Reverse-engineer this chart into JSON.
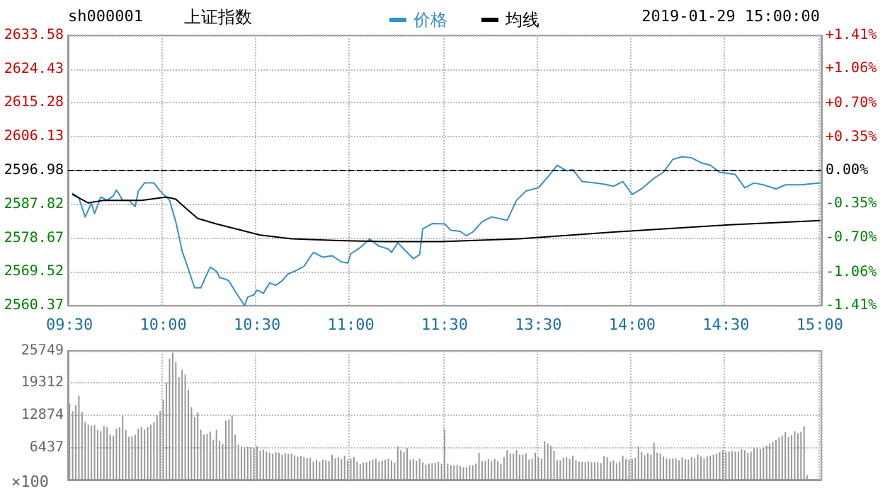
{
  "chart_data": [
    {
      "type": "line",
      "title": "sh000001",
      "subtitle": "上证指数",
      "annotations": [
        "2019-01-29 15:00:00"
      ],
      "categories": [
        "09:30",
        null,
        null,
        null,
        null,
        null,
        null,
        null,
        null,
        null,
        null,
        null,
        null,
        null,
        null,
        null,
        null,
        null,
        null,
        null,
        null,
        null,
        null,
        null,
        null,
        null,
        null,
        null,
        null,
        null,
        "10:00",
        null,
        null,
        null,
        null,
        null,
        null,
        null,
        null,
        null,
        null,
        null,
        null,
        null,
        null,
        null,
        null,
        null,
        null,
        null,
        null,
        null,
        null,
        null,
        null,
        null,
        null,
        null,
        null,
        null,
        "10:30",
        null,
        null,
        null,
        null,
        null,
        null,
        null,
        null,
        null,
        null,
        null,
        null,
        null,
        null,
        null,
        null,
        null,
        null,
        null,
        null,
        null,
        null,
        null,
        null,
        null,
        null,
        null,
        null,
        null,
        "11:00",
        null,
        null,
        null,
        null,
        null,
        null,
        null,
        null,
        null,
        null,
        null,
        null,
        null,
        null,
        null,
        null,
        null,
        null,
        null,
        null,
        null,
        null,
        null,
        null,
        null,
        null,
        null,
        null,
        null,
        "11:30",
        null,
        null,
        null,
        null,
        null,
        null,
        null,
        null,
        null,
        null,
        null,
        null,
        null,
        null,
        null,
        null,
        null,
        null,
        null,
        null,
        null,
        null,
        null,
        null,
        null,
        null,
        null,
        null,
        null,
        "13:30",
        null,
        null,
        null,
        null,
        null,
        null,
        null,
        null,
        null,
        null,
        null,
        null,
        null,
        null,
        null,
        null,
        null,
        null,
        null,
        null,
        null,
        null,
        null,
        null,
        null,
        null,
        null,
        null,
        null,
        "14:00",
        null,
        null,
        null,
        null,
        null,
        null,
        null,
        null,
        null,
        null,
        null,
        null,
        null,
        null,
        null,
        null,
        null,
        null,
        null,
        null,
        null,
        null,
        null,
        null,
        null,
        null,
        null,
        null,
        null,
        "14:30",
        null,
        null,
        null,
        null,
        null,
        null,
        null,
        null,
        null,
        null,
        null,
        null,
        null,
        null,
        null,
        null,
        null,
        null,
        null,
        null,
        null,
        null,
        null,
        null,
        null,
        null,
        null,
        null,
        null,
        "15:00"
      ],
      "ylim": [
        2560.37,
        2633.58
      ],
      "yticks": [
        2560.37,
        2569.52,
        2578.67,
        2587.82,
        2596.98,
        2606.13,
        2615.28,
        2624.43,
        2633.58
      ],
      "y2lim": [
        -1.41,
        1.41
      ],
      "y2ticks": [
        {
          "value": -1.41,
          "label": "-1.41%"
        },
        {
          "value": -1.06,
          "label": "-1.06%"
        },
        {
          "value": -0.7,
          "label": "-0.70%"
        },
        {
          "value": -0.35,
          "label": "-0.35%"
        },
        {
          "value": 0,
          "label": "0.00%"
        },
        {
          "value": 0.35,
          "label": "+0.35%"
        },
        {
          "value": 0.7,
          "label": "+0.70%"
        },
        {
          "value": 1.06,
          "label": "+1.06%"
        },
        {
          "value": 1.41,
          "label": "+1.41%"
        }
      ],
      "ref_lines": [
        {
          "axis": "y",
          "value": 2596.98,
          "color": "#000000",
          "line_style": "dashed"
        }
      ],
      "grid": true,
      "legend": "top",
      "marker": "none",
      "line_style": "solid",
      "series": [
        {
          "name": "价格",
          "color": "#3a8fc7",
          "values": [
            null,
            2590.8,
            null,
            2589.5,
            null,
            2584.4,
            null,
            2588.2,
            2585.3,
            null,
            2589.8,
            null,
            2588.9,
            null,
            2590.1,
            2591.7,
            null,
            2588.9,
            null,
            2588.9,
            null,
            2587.2,
            2591.4,
            null,
            2593.6,
            null,
            null,
            2593.6,
            null,
            2591.4,
            null,
            null,
            2588.9,
            null,
            2583.1,
            null,
            2575.2,
            null,
            2570.3,
            null,
            2565.2,
            null,
            2565.2,
            null,
            2569.0,
            2570.8,
            null,
            2569.7,
            2568.0,
            null,
            2567.5,
            2567.1,
            null,
            2564.2,
            null,
            null,
            2560.4,
            2562.7,
            null,
            2563.3,
            2564.6,
            null,
            2563.7,
            null,
            2566.5,
            null,
            2565.9,
            null,
            2567.1,
            null,
            2569.0,
            null,
            2569.7,
            null,
            null,
            2571.0,
            null,
            null,
            2574.8,
            null,
            null,
            2573.5,
            null,
            null,
            2573.9,
            null,
            null,
            2572.2,
            null,
            2571.9,
            2574.4,
            null,
            null,
            2576.1,
            null,
            null,
            2578.4,
            null,
            null,
            2576.5,
            null,
            null,
            2575.7,
            2574.8,
            null,
            2577.4,
            null,
            null,
            2574.8,
            null,
            2573.1,
            null,
            2574.2,
            2581.2,
            null,
            null,
            2582.6,
            null,
            null,
            null,
            2582.5,
            null,
            2580.8,
            null,
            null,
            2580.5,
            null,
            2579.3,
            null,
            2580.3,
            null,
            null,
            2583.1,
            null,
            null,
            2584.4,
            null,
            null,
            null,
            null,
            2583.5,
            null,
            null,
            2588.9,
            null,
            null,
            2591.4,
            null,
            null,
            null,
            2592.3,
            null,
            null,
            2595.2,
            null,
            null,
            2598.4,
            null,
            null,
            2596.9,
            null,
            2597.2,
            null,
            null,
            2594.0,
            null,
            null,
            null,
            2593.6,
            null,
            null,
            2593.3,
            null,
            null,
            2592.7,
            null,
            null,
            2594.0,
            null,
            null,
            2590.5,
            null,
            null,
            2592.0,
            null,
            null,
            null,
            2594.9,
            null,
            null,
            2596.5,
            null,
            null,
            2600.0,
            null,
            null,
            2600.7,
            null,
            null,
            2600.4,
            null,
            null,
            2599.1,
            null,
            null,
            2598.4,
            null,
            null,
            2596.5,
            null,
            null,
            null,
            null,
            2595.9,
            null,
            null,
            2592.3,
            null,
            null,
            2593.6,
            null,
            null,
            2593.1,
            null,
            null,
            null,
            2592.0,
            null,
            null,
            2593.1,
            null,
            null,
            null,
            null,
            2593.1,
            null,
            null,
            null,
            null,
            null,
            2593.6
          ]
        },
        {
          "name": "均线",
          "color": "#000000",
          "values": [
            null,
            2590.5,
            null,
            null,
            null,
            null,
            2588.2,
            null,
            null,
            null,
            null,
            2588.9,
            null,
            null,
            null,
            null,
            null,
            null,
            null,
            null,
            null,
            null,
            null,
            2588.9,
            null,
            null,
            null,
            null,
            null,
            null,
            null,
            2589.8,
            null,
            null,
            2589.2,
            null,
            null,
            2586.9,
            null,
            null,
            null,
            2584.0,
            null,
            null,
            null,
            null,
            null,
            2582.5,
            null,
            null,
            null,
            null,
            null,
            2581.2,
            null,
            null,
            null,
            null,
            null,
            null,
            null,
            2579.5,
            null,
            null,
            null,
            null,
            null,
            null,
            null,
            null,
            null,
            2578.5,
            null,
            null,
            null,
            null,
            null,
            null,
            null,
            null,
            null,
            null,
            null,
            null,
            null,
            null,
            2578.0,
            null,
            null,
            null,
            null,
            null,
            null,
            null,
            null,
            null,
            null,
            null,
            null,
            null,
            null,
            2577.7,
            null,
            null,
            null,
            null,
            null,
            null,
            null,
            null,
            null,
            null,
            null,
            null,
            null,
            null,
            null,
            null,
            null,
            2577.7,
            null,
            null,
            null,
            null,
            null,
            null,
            null,
            null,
            null,
            null,
            null,
            null,
            null,
            null,
            null,
            null,
            null,
            null,
            null,
            null,
            null,
            null,
            null,
            null,
            2578.5,
            null,
            null,
            null,
            null,
            null,
            null,
            null,
            null,
            null,
            null,
            null,
            null,
            null,
            null,
            null,
            null,
            null,
            null,
            null,
            null,
            null,
            null,
            null,
            null,
            null,
            null,
            null,
            null,
            null,
            2580.3,
            null,
            null,
            null,
            null,
            null,
            null,
            null,
            null,
            null,
            null,
            null,
            null,
            null,
            null,
            null,
            null,
            null,
            null,
            null,
            null,
            null,
            null,
            null,
            null,
            null,
            null,
            null,
            null,
            null,
            null,
            null,
            null,
            null,
            null,
            null,
            2582.2,
            null,
            null,
            null,
            null,
            null,
            null,
            null,
            null,
            null,
            null,
            null,
            null,
            null,
            null,
            null,
            null,
            null,
            null,
            null,
            null,
            null,
            null,
            null,
            null,
            null,
            null,
            null,
            null,
            null,
            2583.4
          ]
        }
      ]
    },
    {
      "type": "bar",
      "tick_labels": "y",
      "grid": true,
      "color": "#999999",
      "ylabel": "×100",
      "categories": [
        null,
        null,
        null,
        null,
        null,
        null,
        null,
        null,
        null,
        null,
        null,
        null,
        null,
        null,
        null,
        null,
        null,
        null,
        null,
        null,
        null,
        null,
        null,
        null,
        null,
        null,
        null,
        null,
        null,
        null,
        null,
        null,
        null,
        null,
        null,
        null,
        null,
        null,
        null,
        null,
        null,
        null,
        null,
        null,
        null,
        null,
        null,
        null,
        null,
        null,
        null,
        null,
        null,
        null,
        null,
        null,
        null,
        null,
        null,
        null,
        null,
        null,
        null,
        null,
        null,
        null,
        null,
        null,
        null,
        null,
        null,
        null,
        null,
        null,
        null,
        null,
        null,
        null,
        null,
        null,
        null,
        null,
        null,
        null,
        null,
        null,
        null,
        null,
        null,
        null,
        null,
        null,
        null,
        null,
        null,
        null,
        null,
        null,
        null,
        null,
        null,
        null,
        null,
        null,
        null,
        null,
        null,
        null,
        null,
        null,
        null,
        null,
        null,
        null,
        null,
        null,
        null,
        null,
        null,
        null,
        null,
        null,
        null,
        null,
        null,
        null,
        null,
        null,
        null,
        null,
        null,
        null,
        null,
        null,
        null,
        null,
        null,
        null,
        null,
        null,
        null,
        null,
        null,
        null,
        null,
        null,
        null,
        null,
        null,
        null,
        null,
        null,
        null,
        null,
        null,
        null,
        null,
        null,
        null,
        null,
        null,
        null,
        null,
        null,
        null,
        null,
        null,
        null,
        null,
        null,
        null,
        null,
        null,
        null,
        null,
        null,
        null,
        null,
        null,
        null,
        null,
        null,
        null,
        null,
        null,
        null,
        null,
        null,
        null,
        null,
        null,
        null,
        null,
        null,
        null,
        null,
        null,
        null,
        null,
        null,
        null,
        null,
        null,
        null,
        null,
        null,
        null,
        null,
        null,
        null,
        null,
        null,
        null,
        null,
        null,
        null,
        null,
        null,
        null,
        null,
        null,
        null,
        null,
        null,
        null,
        null,
        null,
        null,
        null,
        null,
        null,
        null,
        null,
        null,
        null,
        null,
        null,
        null,
        null,
        null,
        null
      ],
      "ylim": [
        0,
        25749
      ],
      "yticks": [
        6437,
        12874,
        19312,
        25749
      ],
      "values": [
        15200,
        13700,
        14900,
        16800,
        13500,
        11500,
        11000,
        10800,
        10900,
        10000,
        9700,
        10700,
        10500,
        9000,
        8800,
        10200,
        10500,
        12800,
        9900,
        8600,
        8700,
        9000,
        10200,
        10500,
        10000,
        10500,
        11000,
        11500,
        12900,
        13700,
        16000,
        19400,
        24200,
        25400,
        23500,
        20500,
        22000,
        21000,
        18000,
        14500,
        12500,
        13500,
        10000,
        9000,
        9200,
        9600,
        8000,
        10000,
        7800,
        7200,
        11800,
        12000,
        12800,
        9000,
        7000,
        6700,
        6500,
        6600,
        6500,
        6300,
        6700,
        5800,
        6000,
        5600,
        5400,
        5200,
        5500,
        5400,
        5000,
        5300,
        5100,
        5200,
        4900,
        4600,
        4700,
        4500,
        4300,
        4400,
        3600,
        4000,
        3600,
        4000,
        3900,
        3700,
        5000,
        4300,
        4500,
        4100,
        4800,
        3900,
        4200,
        4500,
        3600,
        3100,
        3400,
        3500,
        3800,
        4000,
        4200,
        3600,
        3800,
        4000,
        4200,
        3900,
        3400,
        6700,
        5900,
        5500,
        6300,
        4000,
        4100,
        3800,
        4200,
        3500,
        3000,
        3200,
        3300,
        3400,
        3600,
        3200,
        10000,
        3200,
        2900,
        2900,
        2900,
        2700,
        2500,
        2500,
        2900,
        2900,
        3200,
        5400,
        3700,
        3800,
        4100,
        3700,
        4100,
        3700,
        3200,
        4500,
        5900,
        5200,
        5200,
        5900,
        5000,
        5000,
        5300,
        4000,
        4200,
        5400,
        4500,
        4200,
        7700,
        7200,
        6800,
        5800,
        3900,
        3900,
        4400,
        4500,
        4100,
        4800,
        3900,
        3600,
        3600,
        3500,
        3600,
        3500,
        3500,
        3500,
        3300,
        4700,
        4500,
        3600,
        3900,
        3300,
        3600,
        4800,
        4100,
        4000,
        4100,
        4400,
        6600,
        5500,
        4900,
        5300,
        5000,
        7400,
        5400,
        5200,
        4600,
        4200,
        4100,
        4300,
        4200,
        3900,
        4500,
        4100,
        4000,
        4500,
        4300,
        5000,
        4600,
        4200,
        4600,
        4800,
        5000,
        5200,
        5500,
        5900,
        5600,
        5600,
        5700,
        5600,
        5600,
        6100,
        5900,
        5400,
        5600,
        6300,
        6300,
        6100,
        6400,
        6800,
        7200,
        7500,
        7900,
        8400,
        8800,
        9500,
        8500,
        8900,
        9700,
        9300,
        9600,
        10700,
        900,
        null,
        null,
        null,
        null
      ]
    }
  ]
}
